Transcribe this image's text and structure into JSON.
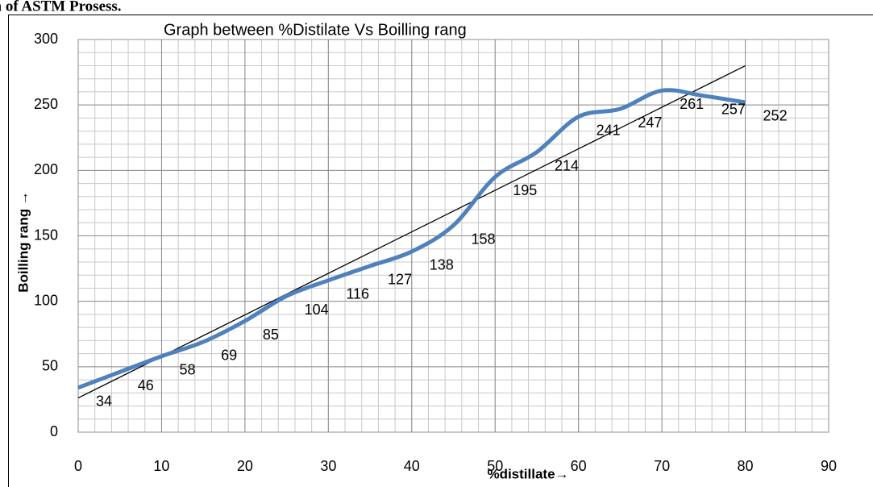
{
  "caption": "on of  ASTM Prosess.",
  "chart_data": {
    "type": "line",
    "title": "Graph between %Distilate Vs Boilling rang",
    "x_label": "%distillate→",
    "y_label": "Boilling rang →",
    "x": [
      0,
      5,
      10,
      15,
      20,
      25,
      30,
      35,
      40,
      45,
      50,
      55,
      60,
      65,
      70,
      75,
      80
    ],
    "series": [
      {
        "name": "Boilling rang",
        "color": "#4f81bd",
        "values": [
          34,
          46,
          58,
          69,
          85,
          104,
          116,
          127,
          138,
          158,
          195,
          214,
          241,
          247,
          261,
          257,
          252
        ]
      }
    ],
    "trendline": "linear",
    "trendline_color": "#000000",
    "xlim": [
      0,
      90
    ],
    "xticks": [
      0,
      10,
      20,
      30,
      40,
      50,
      60,
      70,
      80,
      90
    ],
    "ylim": [
      0,
      300
    ],
    "yticks": [
      0,
      50,
      100,
      150,
      200,
      250,
      300
    ],
    "x_minor_step": 2,
    "y_minor_step": 10,
    "grid": true,
    "smooth": true
  }
}
